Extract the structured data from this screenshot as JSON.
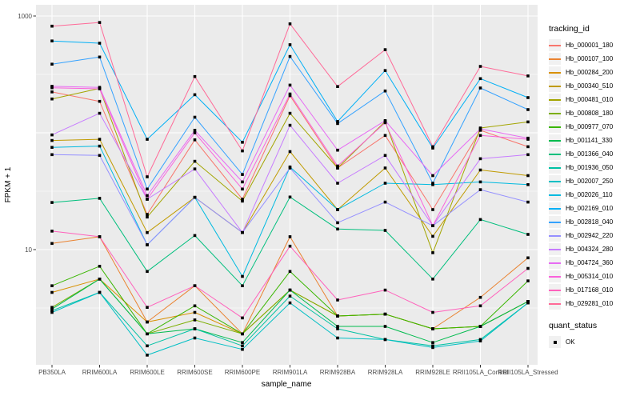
{
  "figure": {
    "panel_background": "#EBEBEB",
    "grid_color": "#FFFFFF",
    "tick_color": "#333333",
    "axis_text_color": "#4D4D4D",
    "point_color": "#000000"
  },
  "legend": {
    "tracking_title": "tracking_id",
    "quant_title": "quant_status",
    "quant_items": [
      {
        "label": "OK"
      }
    ]
  },
  "chart_data": {
    "type": "line",
    "title": "",
    "xlabel": "sample_name",
    "ylabel": "FPKM + 1",
    "y_scale": "log10",
    "ylim": [
      1,
      1000
    ],
    "y_ticks": [
      {
        "label": "1000",
        "value": 1000
      },
      {
        "label": "10",
        "value": 10
      }
    ],
    "grid": true,
    "legend_position": "right",
    "categories": [
      "PB350LA",
      "RRIM600LA",
      "RRIM600LE",
      "RRIM600SE",
      "RRIM600PE",
      "RRIM901LA",
      "RRIM928BA",
      "RRIM928LA",
      "RRIM928LE",
      "RRII105LA_Control",
      "RRII105LA_Stressed"
    ],
    "series": [
      {
        "name": "Hb_000001_180",
        "color": "#F8766D",
        "values": [
          224,
          186,
          20,
          87,
          27,
          208,
          50,
          95,
          22,
          105,
          76
        ]
      },
      {
        "name": "Hb_000107_100",
        "color": "#EA8331",
        "values": [
          11.3,
          12.9,
          2.4,
          4.9,
          1.9,
          12.9,
          2.7,
          2.8,
          2.1,
          3.9,
          8.5
        ]
      },
      {
        "name": "Hb_000284_200",
        "color": "#D89000",
        "values": [
          4.3,
          5.6,
          2.4,
          2.9,
          1.9,
          4.5,
          2.7,
          2.8,
          2.1,
          2.2,
          3.6
        ]
      },
      {
        "name": "Hb_000340_510",
        "color": "#C09B00",
        "values": [
          86,
          88,
          14,
          28,
          14,
          69,
          22,
          50,
          13,
          48,
          43
        ]
      },
      {
        "name": "Hb_000481_010",
        "color": "#A3A500",
        "values": [
          195,
          240,
          19,
          57,
          26,
          147,
          50,
          125,
          9.4,
          110,
          124
        ]
      },
      {
        "name": "Hb_000808_180",
        "color": "#7CAE00",
        "values": [
          3.2,
          5.6,
          1.9,
          2.5,
          1.9,
          4.5,
          2.7,
          2.8,
          2.1,
          2.2,
          3.6
        ]
      },
      {
        "name": "Hb_000977_070",
        "color": "#39B600",
        "values": [
          4.9,
          7.2,
          1.9,
          3.3,
          1.9,
          6.5,
          2.7,
          2.8,
          2.1,
          2.2,
          5.4
        ]
      },
      {
        "name": "Hb_001141_330",
        "color": "#00BB4E",
        "values": [
          3.1,
          5.6,
          1.9,
          2.1,
          1.6,
          4.5,
          2.2,
          2.2,
          1.6,
          2.2,
          3.6
        ]
      },
      {
        "name": "Hb_001366_040",
        "color": "#00BF7D",
        "values": [
          25.3,
          27.5,
          6.5,
          13.2,
          4.9,
          28.2,
          15,
          14.6,
          5.6,
          18.1,
          13.5
        ]
      },
      {
        "name": "Hb_001936_050",
        "color": "#00C1A3",
        "values": [
          3.0,
          4.3,
          1.5,
          2.1,
          1.5,
          4.0,
          2.1,
          1.7,
          1.5,
          1.7,
          3.5
        ]
      },
      {
        "name": "Hb_002007_250",
        "color": "#00BFC4",
        "values": [
          2.9,
          4.3,
          1.25,
          1.75,
          1.4,
          3.5,
          1.75,
          1.7,
          1.45,
          1.65,
          3.5
        ]
      },
      {
        "name": "Hb_002026_110",
        "color": "#00BAE0",
        "values": [
          75,
          77,
          11,
          28,
          5.9,
          51,
          22,
          37,
          36,
          38,
          36
        ]
      },
      {
        "name": "Hb_002169_010",
        "color": "#00B0F6",
        "values": [
          611,
          585,
          88,
          212,
          83,
          568,
          125,
          341,
          74,
          291,
          200
        ]
      },
      {
        "name": "Hb_002818_040",
        "color": "#35A2FF",
        "values": [
          387,
          445,
          33,
          136,
          44,
          450,
          120,
          228,
          37,
          242,
          158
        ]
      },
      {
        "name": "Hb_002942_220",
        "color": "#9590FF",
        "values": [
          65,
          64,
          11,
          28,
          14,
          50,
          17,
          25.5,
          16,
          32.6,
          25.5
        ]
      },
      {
        "name": "Hb_004324_280",
        "color": "#C77CFF",
        "values": [
          96,
          147,
          27,
          49,
          14,
          116,
          37,
          64,
          16,
          60,
          65
        ]
      },
      {
        "name": "Hb_004724_360",
        "color": "#E76BF3",
        "values": [
          250,
          245,
          29,
          105,
          38,
          256,
          71,
          127,
          43,
          108,
          90
        ]
      },
      {
        "name": "Hb_005314_010",
        "color": "#FA62DB",
        "values": [
          243,
          238,
          27,
          100,
          33,
          215,
          52,
          122,
          16,
          95,
          88
        ]
      },
      {
        "name": "Hb_017168_010",
        "color": "#FF62BC",
        "values": [
          14.4,
          12.9,
          3.2,
          4.9,
          2.6,
          10.7,
          3.7,
          4.5,
          2.9,
          3.3,
          6.9
        ]
      },
      {
        "name": "Hb_029281_010",
        "color": "#FF6A98",
        "values": [
          818,
          880,
          42,
          303,
          70,
          857,
          249,
          515,
          76,
          370,
          307
        ]
      }
    ]
  }
}
